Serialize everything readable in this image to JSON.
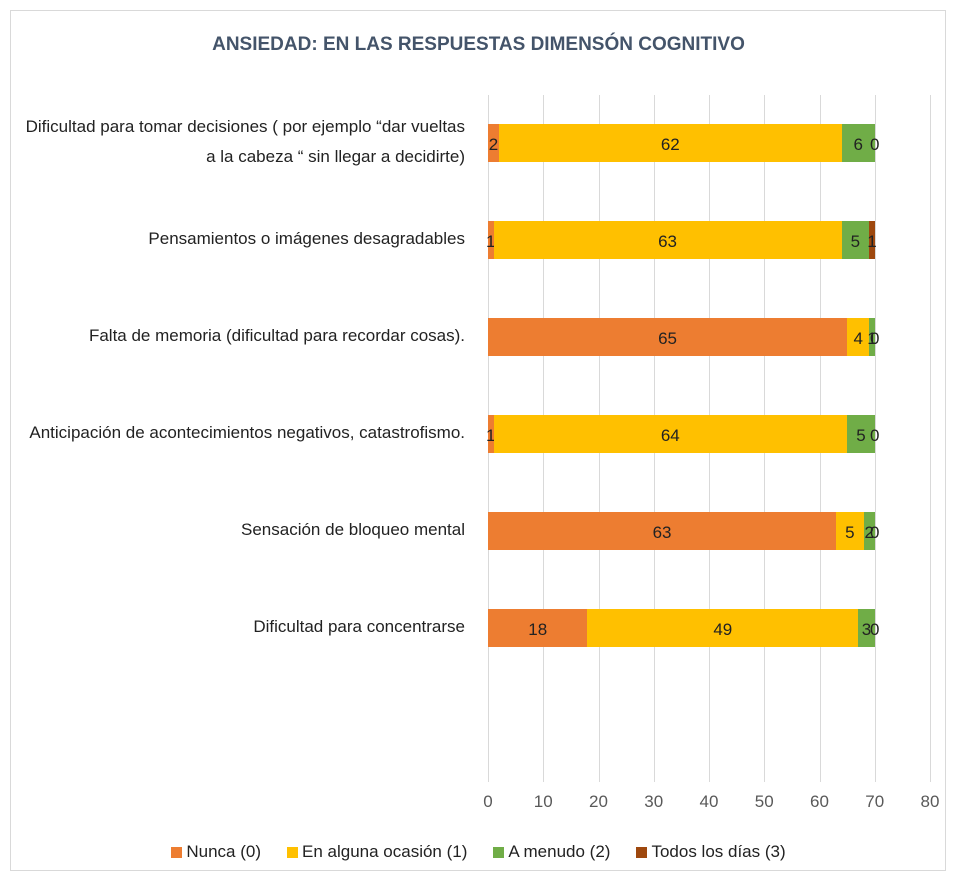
{
  "chart_data": {
    "type": "stacked_barh",
    "title": "ANSIEDAD: EN LAS RESPUESTAS DIMENSÓN COGNITIVO",
    "categories": [
      "Dificultad para tomar decisiones ( por ejemplo “dar vueltas a la cabeza “ sin llegar a decidirte)",
      "Pensamientos o imágenes desagradables",
      "Falta de memoria (dificultad para recordar cosas).",
      "Anticipación de acontecimientos negativos, catastrofismo.",
      "Sensación de bloqueo mental",
      "Dificultad para concentrarse"
    ],
    "series": [
      {
        "name": "Nunca (0)",
        "color": "#ed7d31",
        "values": [
          2,
          1,
          65,
          1,
          63,
          18
        ]
      },
      {
        "name": "En alguna ocasión (1)",
        "color": "#ffc000",
        "values": [
          62,
          63,
          4,
          64,
          5,
          49
        ]
      },
      {
        "name": "A menudo (2)",
        "color": "#70ad47",
        "values": [
          6,
          5,
          1,
          5,
          2,
          3
        ]
      },
      {
        "name": "Todos los días (3)",
        "color": "#9e480e",
        "values": [
          0,
          1,
          0,
          0,
          0,
          0
        ]
      }
    ],
    "xlim": [
      0,
      80
    ],
    "xticks": [
      0,
      10,
      20,
      30,
      40,
      50,
      60,
      70,
      80
    ],
    "grid": true,
    "legend": "bottom"
  }
}
